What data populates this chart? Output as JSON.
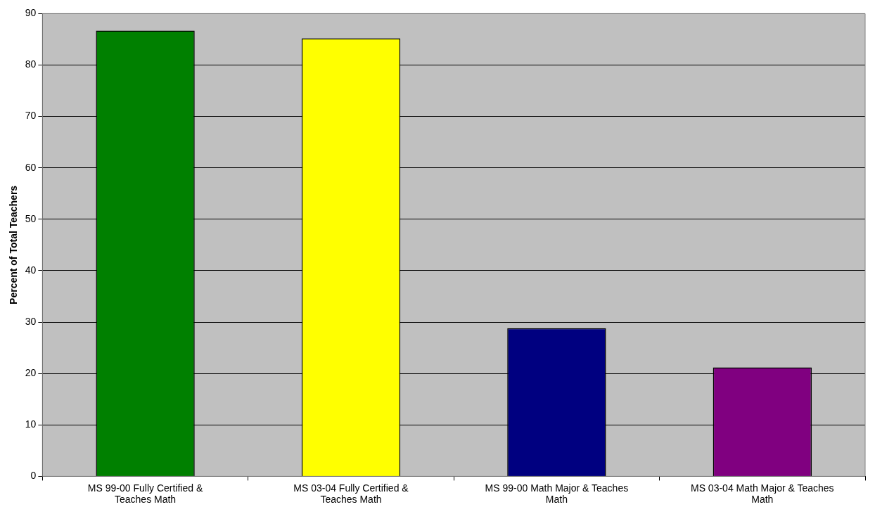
{
  "chart_data": {
    "type": "bar",
    "ylabel": "Percent of Total Teachers",
    "categories": [
      "MS 99-00 Fully Certified & Teaches Math",
      "MS 03-04 Fully Certified & Teaches Math",
      "MS 99-00 Math Major & Teaches Math",
      "MS 03-04 Math Major & Teaches Math"
    ],
    "values": [
      86.7,
      85.2,
      28.8,
      21.2
    ],
    "colors": [
      "#008000",
      "#ffff00",
      "#000080",
      "#800080"
    ],
    "ylim": [
      0,
      90
    ],
    "yticks": [
      0,
      10,
      20,
      30,
      40,
      50,
      60,
      70,
      80,
      90
    ],
    "grid": "y",
    "legend": false
  }
}
